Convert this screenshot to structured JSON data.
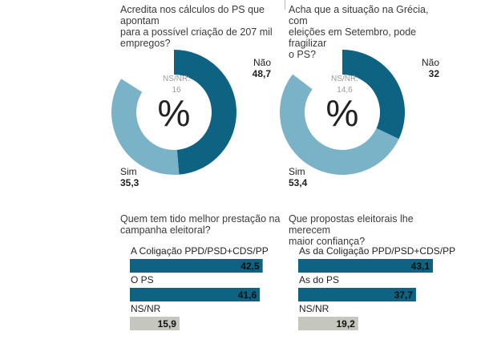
{
  "colors": {
    "dark": "#0e6382",
    "light": "#7ab3c8",
    "grey": "#c5c6bd",
    "text": "#222222",
    "muted": "#9a9a9a"
  },
  "chart_data": [
    {
      "type": "pie",
      "title": "Acredita nos cálculos do PS que apontam para a possível criação de 207 mil empregos?",
      "title_lines": [
        "Acredita nos cálculos do PS que apontam",
        "para a possível criação de 207 mil",
        "empregos?"
      ],
      "center_symbol": "%",
      "slices": [
        {
          "name": "Não",
          "value": 48.7,
          "display": "48,7",
          "color": "dark"
        },
        {
          "name": "Sim",
          "value": 35.3,
          "display": "35,3",
          "color": "light"
        },
        {
          "name": "NS/NR:",
          "value": 16,
          "display": "16",
          "color": "none"
        }
      ]
    },
    {
      "type": "pie",
      "title": "Acha que a situação na Grécia, com eleições em Setembro, pode fragilizar o PS?",
      "title_lines": [
        "Acha que a situação na Grécia, com",
        "eleições em Setembro, pode fragilizar",
        "o PS?"
      ],
      "center_symbol": "%",
      "slices": [
        {
          "name": "Não",
          "value": 32,
          "display": "32",
          "color": "dark"
        },
        {
          "name": "Sim",
          "value": 53.4,
          "display": "53,4",
          "color": "light"
        },
        {
          "name": "NS/NR:",
          "value": 14.6,
          "display": "14,6",
          "color": "none"
        }
      ]
    },
    {
      "type": "bar",
      "title": "Quem tem tido melhor prestação na campanha eleitoral?",
      "title_lines": [
        "Quem tem tido melhor prestação na",
        "campanha eleitoral?"
      ],
      "categories": [
        "A Coligação PPD/PSD+CDS/PP",
        "O PS",
        "NS/NR"
      ],
      "values": [
        42.5,
        41.6,
        15.9
      ],
      "display": [
        "42,5",
        "41,6",
        "15,9"
      ],
      "colors": [
        "dark",
        "dark",
        "grey"
      ]
    },
    {
      "type": "bar",
      "title": "Que propostas eleitorais lhe merecem maior confiança?",
      "title_lines": [
        "Que propostas eleitorais lhe merecem",
        "maior confiança?"
      ],
      "categories": [
        "As da Coligação PPD/PSD+CDS/PP",
        "As do PS",
        "NS/NR"
      ],
      "values": [
        43.1,
        37.7,
        19.2
      ],
      "display": [
        "43,1",
        "37,7",
        "19,2"
      ],
      "colors": [
        "dark",
        "dark",
        "grey"
      ]
    }
  ]
}
